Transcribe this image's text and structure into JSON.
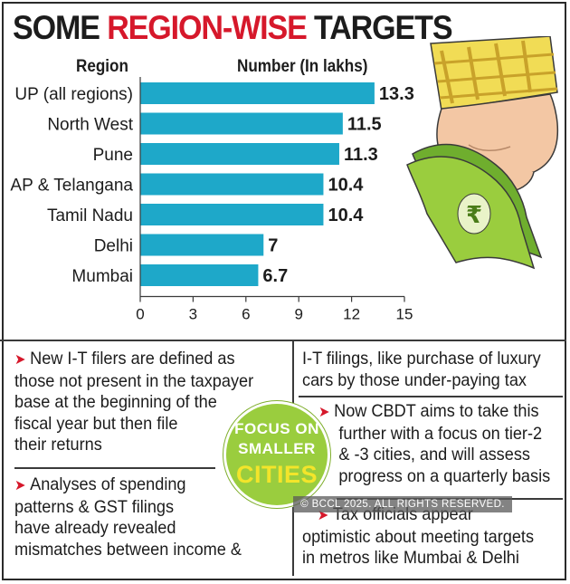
{
  "title": {
    "part1": "SOME",
    "part2": "REGION-WISE",
    "part3": "TARGETS"
  },
  "colors": {
    "bar": "#1ea8c9",
    "title_accent": "#d6182b",
    "badge_green": "#9acd3e",
    "badge_yellow": "#f3e52a",
    "arrow": "#d6182b"
  },
  "chart_data": {
    "type": "bar",
    "orientation": "horizontal",
    "title": "SOME REGION-WISE TARGETS",
    "category_header": "Region",
    "value_header": "Number (In lakhs)",
    "categories": [
      "UP (all regions)",
      "North West",
      "Pune",
      "AP & Telangana",
      "Tamil Nadu",
      "Delhi",
      "Mumbai"
    ],
    "values": [
      13.3,
      11.5,
      11.3,
      10.4,
      10.4,
      7,
      6.7
    ],
    "value_labels": [
      "13.3",
      "11.5",
      "11.3",
      "10.4",
      "10.4",
      "7",
      "6.7"
    ],
    "xlim": [
      0,
      15
    ],
    "ticks": [
      0,
      3,
      6,
      9,
      12,
      15
    ],
    "tick_labels": [
      "0",
      "3",
      "6",
      "9",
      "12",
      "15"
    ],
    "grid": false
  },
  "notes": {
    "p1": [
      "New I-T filers are defined as",
      "those not present in the taxpayer",
      "base at the beginning of the",
      "fiscal year but then file",
      "their returns"
    ],
    "p2": [
      "Analyses of spending",
      "patterns & GST filings",
      "have already revealed",
      "mismatches between income &"
    ],
    "p3": [
      "I-T filings, like purchase of luxury",
      "cars by those under-paying tax"
    ],
    "p4": [
      "Now CBDT aims to take this",
      "further with a focus on tier-2",
      "& -3 cities, and will assess",
      "progress on a quarterly basis"
    ],
    "p5": [
      "Tax officials appear",
      "optimistic about meeting targets",
      "in metros like Mumbai & Delhi"
    ]
  },
  "badge": {
    "line1": "FOCUS ON",
    "line2": "SMALLER",
    "line3": "CITIES"
  },
  "copyright": "© BCCL 2025. ALL RIGHTS RESERVED.",
  "illustration": {
    "icon": "hand-holding-money-icon",
    "currency_symbol": "₹"
  }
}
